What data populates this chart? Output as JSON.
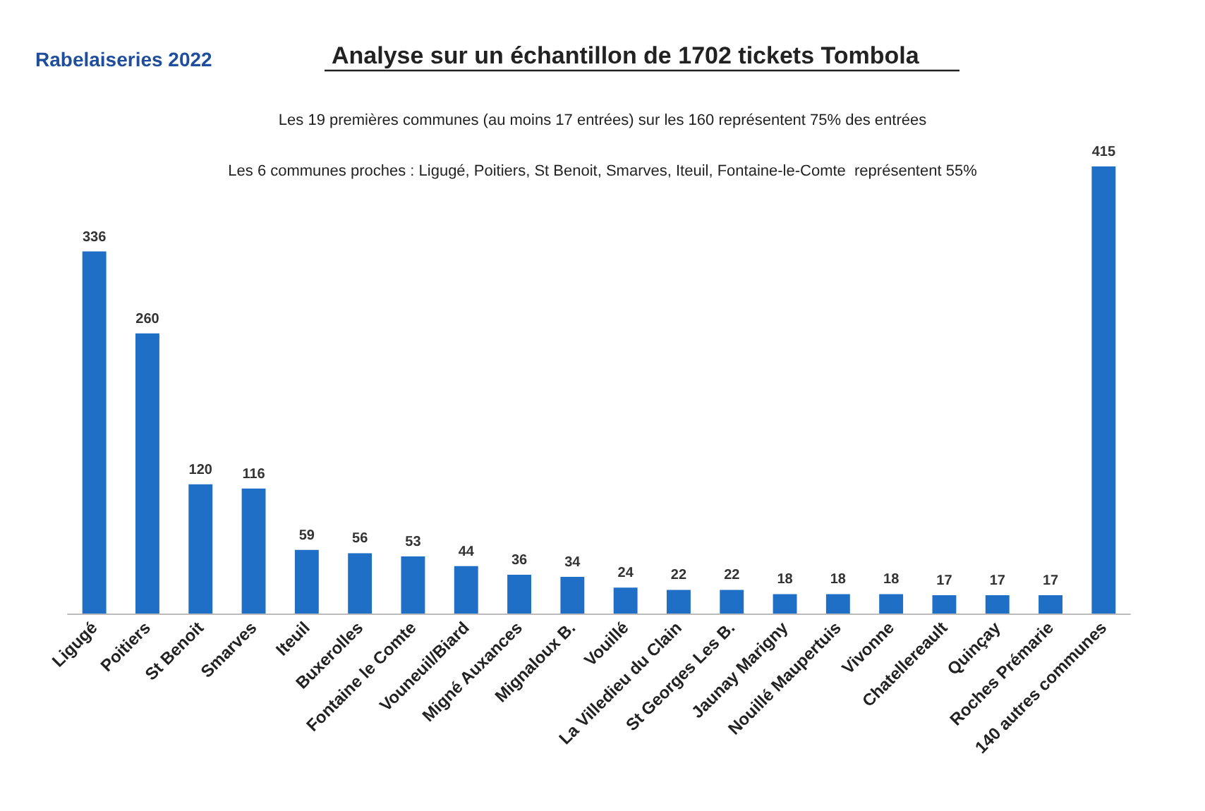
{
  "chart_data": {
    "type": "bar",
    "title": "Analyse sur un échantillon de 1702 tickets Tombola",
    "subtitle": "Rabelaiseries 2022",
    "annotations": [
      "Les 19 premières communes (au moins 17 entrées) sur les 160 représentent 75% des entrées",
      "Les 6 communes proches : Ligugé, Poitiers, St Benoit, Smarves, Iteuil, Fontaine-le-Comte  représentent 55%"
    ],
    "categories": [
      "Ligugé",
      "Poitiers",
      "St Benoit",
      "Smarves",
      "Iteuil",
      "Buxerolles",
      "Fontaine le Comte",
      "Vouneuil/Biard",
      "Migné Auxances",
      "Mignaloux B.",
      "Vouillé",
      "La Villedieu du Clain",
      "St Georges Les B.",
      "Jaunay Marigny",
      "Nouillé Maupertuis",
      "Vivonne",
      "Chatellereault",
      "Quinçay",
      "Roches Prémarie",
      "140 autres communes"
    ],
    "values": [
      336,
      260,
      120,
      116,
      59,
      56,
      53,
      44,
      36,
      34,
      24,
      22,
      22,
      18,
      18,
      18,
      17,
      17,
      17,
      415
    ],
    "color": "#1f6fc6",
    "data_labels": true
  }
}
